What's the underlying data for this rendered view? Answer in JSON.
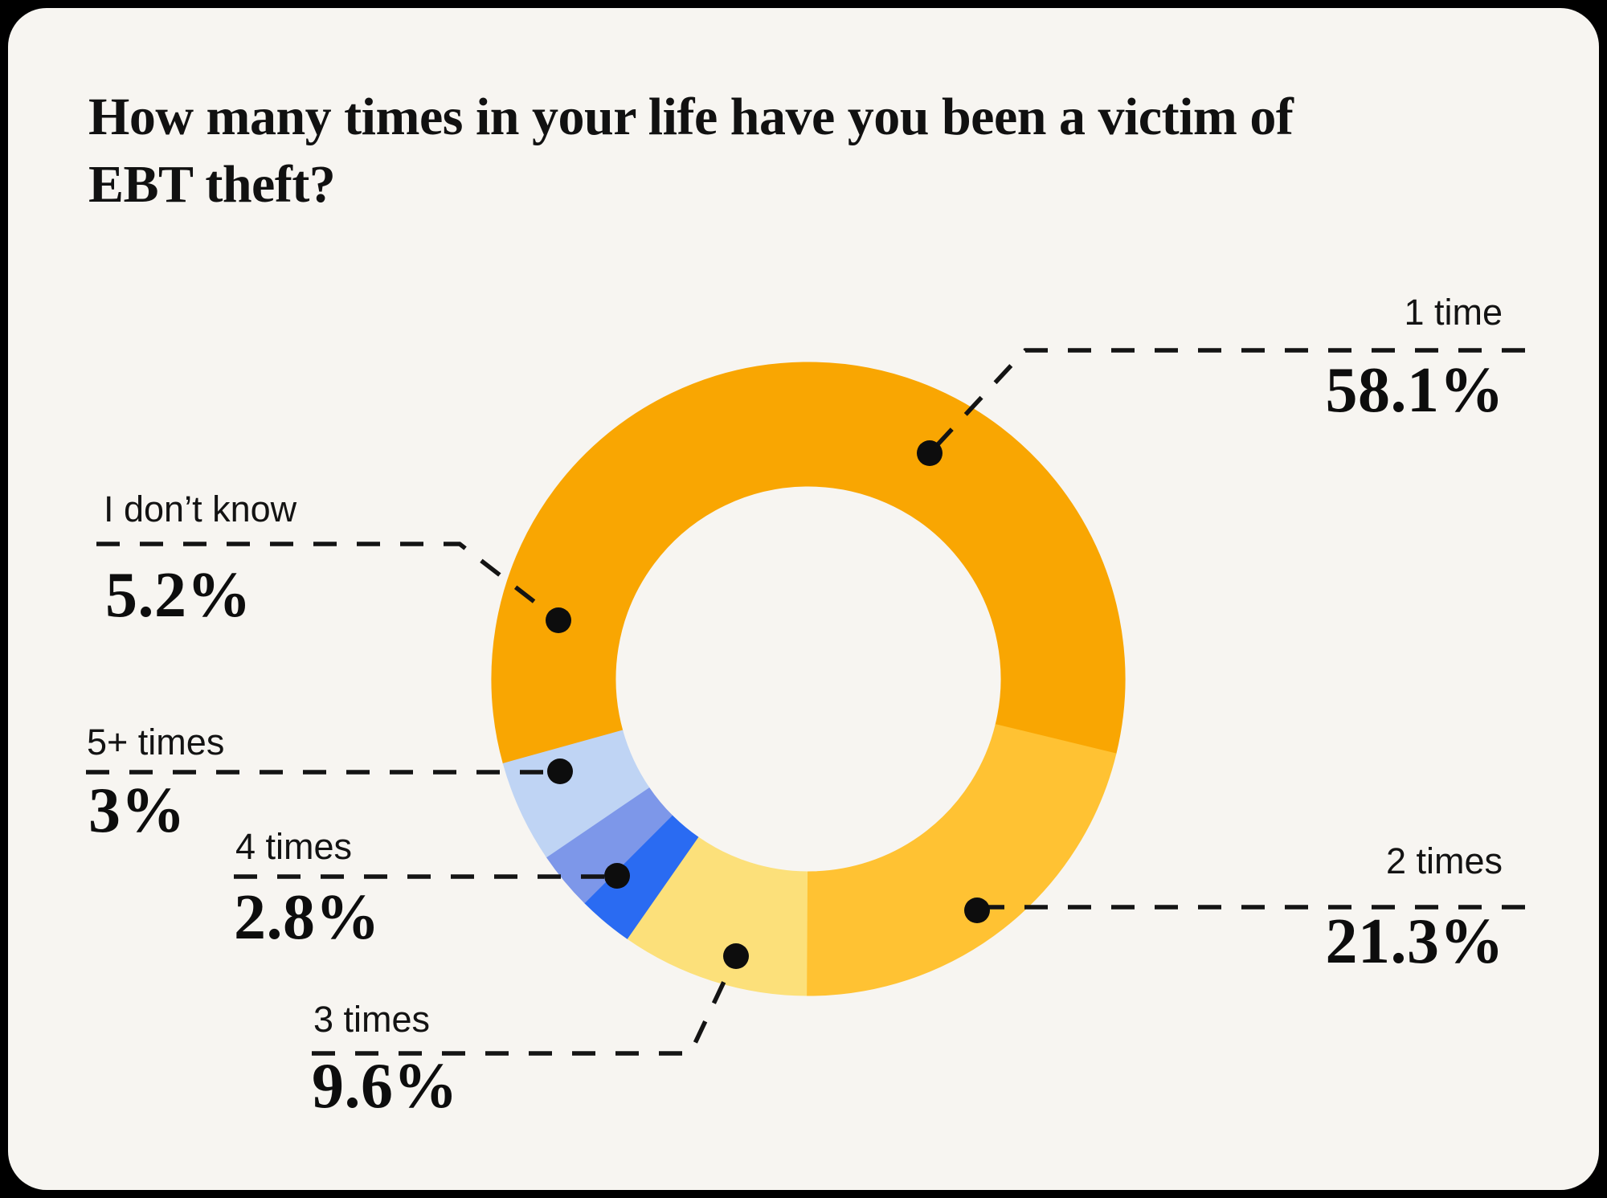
{
  "title": {
    "line1": "How many times in your life have you been a victim of",
    "line2": "EBT theft?"
  },
  "chart_data": {
    "type": "pie",
    "subtype": "donut",
    "title": "How many times in your life have you been a victim of EBT theft?",
    "units": "percent",
    "total": 100,
    "rotation_deg": 254.5,
    "inner_radius_ratio": 0.61,
    "legend_position": "callouts-around-donut",
    "slices": [
      {
        "label": "1 time",
        "value": 58.1,
        "display": "58.1%",
        "color": "#F9A602"
      },
      {
        "label": "2 times",
        "value": 21.3,
        "display": "21.3%",
        "color": "#FFC233"
      },
      {
        "label": "3 times",
        "value": 9.6,
        "display": "9.6%",
        "color": "#FCE07A"
      },
      {
        "label": "4 times",
        "value": 2.8,
        "display": "2.8%",
        "color": "#2A6BF2"
      },
      {
        "label": "5+ times",
        "value": 3,
        "display": "3%",
        "color": "#7D97E9"
      },
      {
        "label": "I don’t know",
        "value": 5.2,
        "display": "5.2%",
        "color": "#BFD4F4"
      }
    ],
    "colors": {
      "background": "#F7F5F1",
      "frame": "#000000",
      "text": "#131313",
      "leader_line": "#141414",
      "marker_dot": "#0D0D0D"
    }
  }
}
